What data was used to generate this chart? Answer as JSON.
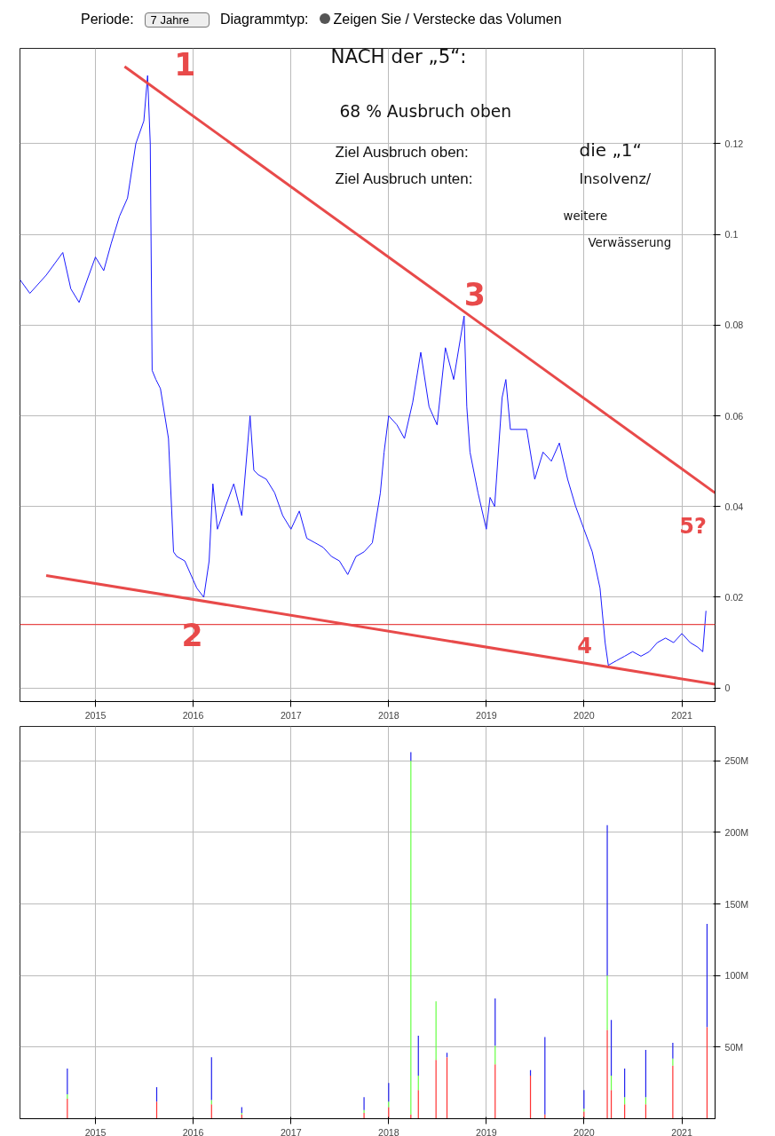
{
  "chart_data": [
    {
      "type": "line",
      "xlim": [
        "2014-03-25",
        "2021-05-05"
      ],
      "ylim": [
        -0.003,
        0.141
      ],
      "xticks": [
        "2015",
        "2016",
        "2017",
        "2018",
        "2019",
        "2020",
        "2021"
      ],
      "yticks": [
        0,
        0.02,
        0.04,
        0.06,
        0.08,
        0.1,
        0.12
      ],
      "grid": true,
      "series": [
        {
          "color": "#1a1aff",
          "x": [
            "2014-03-25",
            "2014-05-01",
            "2014-07-01",
            "2014-09-01",
            "2014-10-01",
            "2014-11-01",
            "2015-01-01",
            "2015-02-01",
            "2015-03-01",
            "2015-04-01",
            "2015-05-01",
            "2015-06-01",
            "2015-07-01",
            "2015-07-15",
            "2015-07-25",
            "2015-08-01",
            "2015-08-15",
            "2015-09-01",
            "2015-10-01",
            "2015-10-20",
            "2015-11-01",
            "2015-12-01",
            "2016-01-15",
            "2016-02-10",
            "2016-03-01",
            "2016-03-15",
            "2016-04-01",
            "2016-05-01",
            "2016-06-01",
            "2016-07-01",
            "2016-08-01",
            "2016-08-15",
            "2016-09-01",
            "2016-10-01",
            "2016-11-01",
            "2016-12-01",
            "2017-01-01",
            "2017-02-01",
            "2017-03-01",
            "2017-04-01",
            "2017-05-01",
            "2017-06-01",
            "2017-07-01",
            "2017-08-01",
            "2017-09-01",
            "2017-10-01",
            "2017-11-01",
            "2017-12-01",
            "2017-12-15",
            "2018-01-01",
            "2018-02-01",
            "2018-03-01",
            "2018-04-01",
            "2018-05-01",
            "2018-06-01",
            "2018-07-01",
            "2018-08-01",
            "2018-09-01",
            "2018-10-10",
            "2018-10-20",
            "2018-11-01",
            "2018-12-01",
            "2019-01-01",
            "2019-01-15",
            "2019-02-01",
            "2019-03-01",
            "2019-03-15",
            "2019-04-01",
            "2019-06-01",
            "2019-07-01",
            "2019-08-01",
            "2019-09-01",
            "2019-10-01",
            "2019-11-01",
            "2019-12-01",
            "2020-01-01",
            "2020-02-01",
            "2020-03-01",
            "2020-03-20",
            "2020-04-01",
            "2020-05-01",
            "2020-06-01",
            "2020-07-01",
            "2020-08-01",
            "2020-09-01",
            "2020-10-01",
            "2020-11-01",
            "2020-12-01",
            "2021-01-01",
            "2021-02-01",
            "2021-03-01",
            "2021-03-20",
            "2021-04-01"
          ],
          "values": [
            0.09,
            0.087,
            0.091,
            0.096,
            0.088,
            0.085,
            0.095,
            0.092,
            0.098,
            0.104,
            0.108,
            0.12,
            0.125,
            0.135,
            0.12,
            0.07,
            0.068,
            0.066,
            0.055,
            0.03,
            0.029,
            0.028,
            0.022,
            0.02,
            0.028,
            0.045,
            0.035,
            0.04,
            0.045,
            0.038,
            0.06,
            0.048,
            0.047,
            0.046,
            0.043,
            0.038,
            0.035,
            0.039,
            0.033,
            0.032,
            0.031,
            0.029,
            0.028,
            0.025,
            0.029,
            0.03,
            0.032,
            0.043,
            0.052,
            0.06,
            0.058,
            0.055,
            0.063,
            0.074,
            0.062,
            0.058,
            0.075,
            0.068,
            0.082,
            0.062,
            0.052,
            0.043,
            0.035,
            0.042,
            0.04,
            0.064,
            0.068,
            0.057,
            0.057,
            0.046,
            0.052,
            0.05,
            0.054,
            0.046,
            0.04,
            0.035,
            0.03,
            0.022,
            0.01,
            0.005,
            0.006,
            0.007,
            0.008,
            0.007,
            0.008,
            0.01,
            0.011,
            0.01,
            0.012,
            0.01,
            0.009,
            0.008,
            0.017
          ]
        },
        {
          "type": "line",
          "color": "#e84a4a",
          "x": [
            "2015-04-20",
            "2021-05-05"
          ],
          "values": [
            0.137,
            0.043
          ]
        },
        {
          "type": "line",
          "color": "#e84a4a",
          "x": [
            "2014-07-01",
            "2021-05-05"
          ],
          "values": [
            0.0248,
            0.0008
          ]
        }
      ],
      "ref_lines": [
        {
          "axis": "y",
          "value": 0.014,
          "color": "#e84a4a"
        }
      ],
      "annotations": [
        "Periode:",
        "7 Jahre",
        "Diagrammtyp:",
        "Zeigen Sie / Verstecke das Volumen",
        "NACH der „5“:",
        "68 % Ausbruch oben",
        "Ziel Ausbruch oben:",
        "die „1“",
        "Ziel Ausbruch unten:",
        "Insolvenz/",
        "weitere",
        "Verwässerung",
        {
          "text": "1",
          "x": "2015-07-15",
          "y": 0.135
        },
        {
          "text": "2",
          "x": "2016-02-10",
          "y": 0.02
        },
        {
          "text": "3",
          "x": "2018-10-10",
          "y": 0.082
        },
        {
          "text": "4",
          "x": "2020-04-01",
          "y": 0.005
        },
        {
          "text": "5?",
          "x": "2021-04-01",
          "y": 0.043
        }
      ]
    },
    {
      "type": "bar",
      "stacked": true,
      "xlim": [
        "2014-03-25",
        "2021-05-05"
      ],
      "ylim": [
        0,
        274
      ],
      "xticks": [
        "2015",
        "2016",
        "2017",
        "2018",
        "2019",
        "2020",
        "2021"
      ],
      "yticks": [
        {
          "value": 50,
          "label": "50M"
        },
        {
          "value": 100,
          "label": "100M"
        },
        {
          "value": 150,
          "label": "150M"
        },
        {
          "value": 200,
          "label": "200M"
        },
        {
          "value": 250,
          "label": "250M"
        }
      ],
      "grid": true,
      "x": [
        "2014-09-18",
        "2015-08-18",
        "2016-03-10",
        "2016-07-01",
        "2017-10-01",
        "2018-01-01",
        "2018-03-25",
        "2018-04-22",
        "2018-06-27",
        "2018-08-07",
        "2019-02-03",
        "2019-06-15",
        "2019-08-08",
        "2020-01-01",
        "2020-03-28",
        "2020-04-12",
        "2020-06-01",
        "2020-08-19",
        "2020-11-28",
        "2021-04-05"
      ],
      "series": [
        {
          "color": "#ff3333",
          "values": [
            14,
            12,
            10,
            3,
            4,
            8,
            3,
            20,
            41,
            43,
            38,
            30,
            3,
            5,
            62,
            20,
            10,
            10,
            37,
            64
          ]
        },
        {
          "color": "#66ff44",
          "values": [
            3,
            0,
            3,
            1,
            2,
            4,
            247,
            10,
            41,
            0,
            13,
            0,
            0,
            2,
            38,
            10,
            5,
            5,
            5,
            0
          ]
        },
        {
          "color": "#2222ee",
          "values": [
            18,
            10,
            30,
            4,
            9,
            13,
            6,
            28,
            0,
            3,
            33,
            4,
            54,
            13,
            105,
            39,
            20,
            33,
            11,
            72
          ]
        }
      ]
    }
  ]
}
